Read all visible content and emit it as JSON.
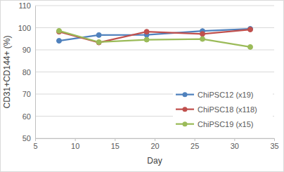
{
  "chart_data": {
    "type": "line",
    "x_label": "Day",
    "y_label": "CD31+CD144+ (%)",
    "x": [
      8,
      13,
      19,
      26,
      32
    ],
    "series": [
      {
        "name": "ChiPSC12 (x19)",
        "color": "#4f81bd",
        "marker": "circle",
        "line_style": "solid",
        "values": [
          94.1,
          96.7,
          96.8,
          98.5,
          99.5
        ]
      },
      {
        "name": "ChiPSC18 (x118)",
        "color": "#c0504d",
        "marker": "circle",
        "line_style": "solid",
        "values": [
          98.2,
          93.3,
          98.2,
          97.2,
          99.2
        ]
      },
      {
        "name": "ChiPSC19 (x15)",
        "color": "#9bbb59",
        "marker": "circle",
        "line_style": "solid",
        "values": [
          98.6,
          93.5,
          94.6,
          94.9,
          91.3
        ]
      }
    ],
    "xlim": [
      5,
      35
    ],
    "xticks": [
      5,
      10,
      15,
      20,
      25,
      30,
      35
    ],
    "ylim": [
      50,
      110
    ],
    "yticks": [
      50,
      60,
      70,
      80,
      90,
      100,
      110
    ],
    "grid": true,
    "legend": "right"
  }
}
